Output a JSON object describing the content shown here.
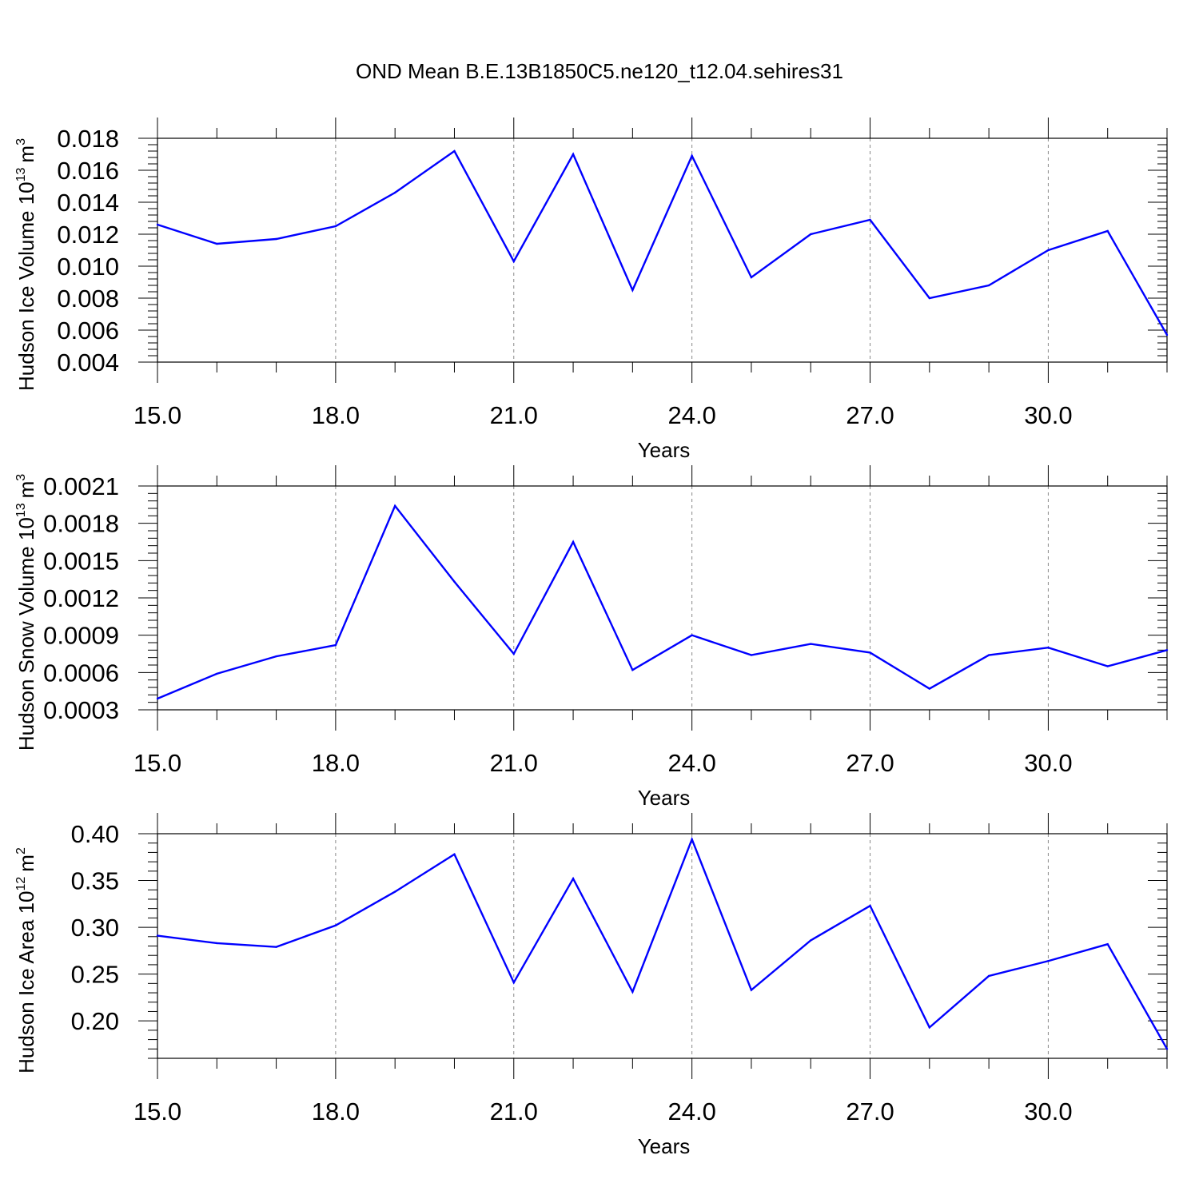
{
  "title": "OND Mean B.E.13B1850C5.ne120_t12.04.sehires31",
  "colors": {
    "line": "#0000ff",
    "axis": "#000000",
    "grid": "#888888"
  },
  "chart_data": [
    {
      "type": "line",
      "xlabel": "Years",
      "ylabel": "Hudson Ice Volume 10",
      "ylabel_exponent": "13",
      "ylabel_unit": "m",
      "ylabel_unit_exponent": "3",
      "xlim": [
        15,
        32
      ],
      "ylim": [
        0.004,
        0.018
      ],
      "xticks": [
        "15.0",
        "18.0",
        "21.0",
        "24.0",
        "27.0",
        "30.0"
      ],
      "yticks": [
        "0.004",
        "0.006",
        "0.008",
        "0.010",
        "0.012",
        "0.014",
        "0.016",
        "0.018"
      ],
      "grid": "vertical dashed at major x ticks",
      "x": [
        15,
        16,
        17,
        18,
        19,
        20,
        21,
        22,
        23,
        24,
        25,
        26,
        27,
        28,
        29,
        30,
        31,
        32
      ],
      "y": [
        0.0126,
        0.0114,
        0.0117,
        0.0125,
        0.0146,
        0.0172,
        0.0103,
        0.017,
        0.0085,
        0.0169,
        0.0093,
        0.012,
        0.0129,
        0.008,
        0.0088,
        0.011,
        0.0122,
        0.0057
      ]
    },
    {
      "type": "line",
      "xlabel": "Years",
      "ylabel": "Hudson Snow Volume 10",
      "ylabel_exponent": "13",
      "ylabel_unit": "m",
      "ylabel_unit_exponent": "3",
      "xlim": [
        15,
        32
      ],
      "ylim": [
        0.0003,
        0.0021
      ],
      "xticks": [
        "15.0",
        "18.0",
        "21.0",
        "24.0",
        "27.0",
        "30.0"
      ],
      "yticks": [
        "0.0003",
        "0.0006",
        "0.0009",
        "0.0012",
        "0.0015",
        "0.0018",
        "0.0021"
      ],
      "grid": "vertical dashed at major x ticks",
      "x": [
        15,
        16,
        17,
        18,
        19,
        20,
        21,
        22,
        23,
        24,
        25,
        26,
        27,
        28,
        29,
        30,
        31,
        32
      ],
      "y": [
        0.00039,
        0.00059,
        0.00073,
        0.00082,
        0.00194,
        0.00133,
        0.00075,
        0.00165,
        0.00062,
        0.0009,
        0.00074,
        0.00083,
        0.00076,
        0.00047,
        0.00074,
        0.0008,
        0.00065,
        0.00078
      ]
    },
    {
      "type": "line",
      "xlabel": "Years",
      "ylabel": "Hudson Ice Area 10",
      "ylabel_exponent": "12",
      "ylabel_unit": "m",
      "ylabel_unit_exponent": "2",
      "xlim": [
        15,
        32
      ],
      "ylim": [
        0.16,
        0.4
      ],
      "xticks": [
        "15.0",
        "18.0",
        "21.0",
        "24.0",
        "27.0",
        "30.0"
      ],
      "yticks": [
        "0.20",
        "0.25",
        "0.30",
        "0.35",
        "0.40"
      ],
      "grid": "vertical dashed at major x ticks",
      "x": [
        15,
        16,
        17,
        18,
        19,
        20,
        21,
        22,
        23,
        24,
        25,
        26,
        27,
        28,
        29,
        30,
        31,
        32
      ],
      "y": [
        0.291,
        0.283,
        0.279,
        0.302,
        0.338,
        0.378,
        0.241,
        0.352,
        0.231,
        0.394,
        0.233,
        0.286,
        0.323,
        0.193,
        0.248,
        0.264,
        0.282,
        0.17
      ]
    }
  ]
}
